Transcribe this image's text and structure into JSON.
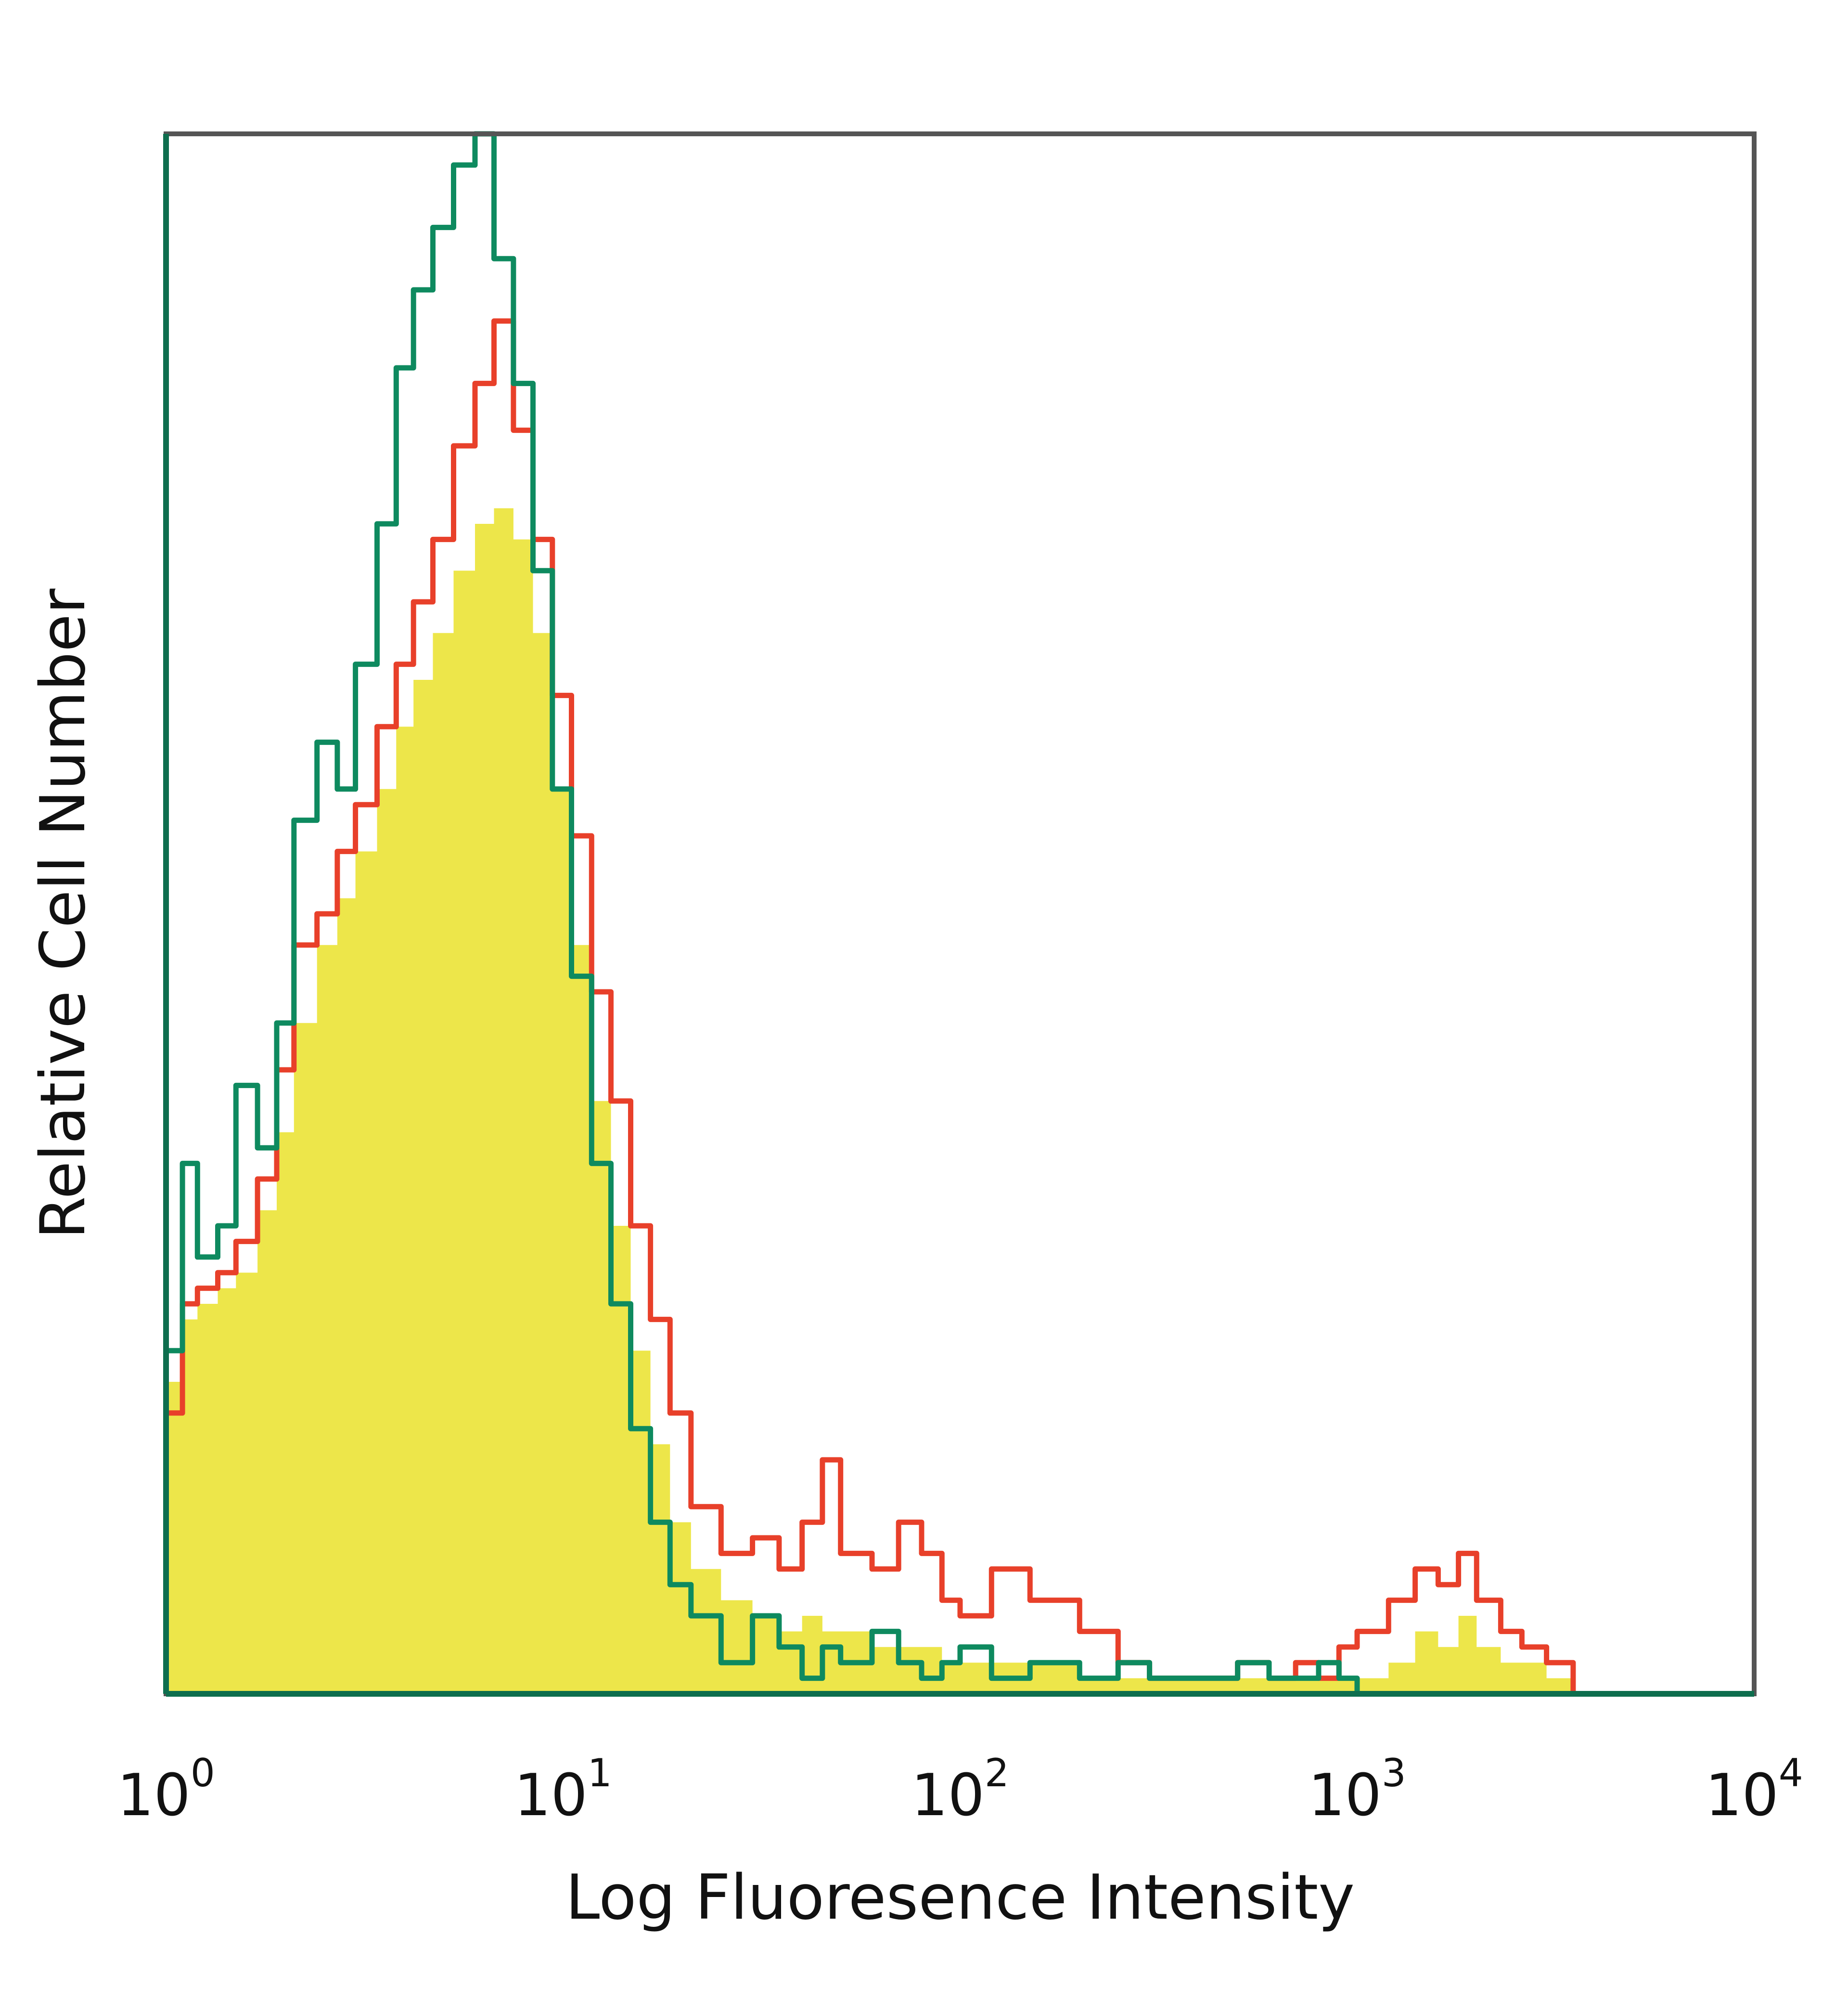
{
  "colors": {
    "filled_histogram": "#ede64a",
    "red_histogram": "#e8402a",
    "green_histogram": "#0e8a5f",
    "frame": "#555555",
    "background": "#ffffff"
  },
  "chart_data": {
    "type": "area",
    "title": "",
    "xlabel": "Log Fluoresence Intensity",
    "ylabel": "Relative Cell Number",
    "xscale": "log",
    "xlim": [
      1,
      10000
    ],
    "ylim": [
      0,
      100
    ],
    "grid": false,
    "x_ticks": [
      {
        "base": "10",
        "exp": "0",
        "value": 1
      },
      {
        "base": "10",
        "exp": "1",
        "value": 10
      },
      {
        "base": "10",
        "exp": "2",
        "value": 100
      },
      {
        "base": "10",
        "exp": "3",
        "value": 1000
      },
      {
        "base": "10",
        "exp": "4",
        "value": 10000
      }
    ],
    "series": [
      {
        "style": "filled",
        "x": [
          1,
          1.1,
          1.2,
          1.35,
          1.5,
          1.7,
          1.9,
          2.1,
          2.4,
          2.7,
          3.0,
          3.4,
          3.8,
          4.2,
          4.7,
          5.3,
          6.0,
          6.7,
          7.5,
          8.4,
          9.4,
          10.5,
          11.8,
          13.2,
          14.8,
          16.6,
          18.6,
          21,
          25,
          30,
          35,
          40,
          45,
          50,
          60,
          70,
          80,
          90,
          100,
          120,
          150,
          200,
          250,
          300,
          400,
          500,
          600,
          700,
          800,
          900,
          1000,
          1200,
          1400,
          1600,
          1800,
          2000,
          2300,
          2600,
          3000,
          3500
        ],
        "y": [
          20,
          24,
          25,
          26,
          27,
          31,
          36,
          43,
          48,
          51,
          54,
          58,
          62,
          65,
          68,
          72,
          75,
          76,
          74,
          68,
          58,
          48,
          38,
          30,
          22,
          16,
          11,
          8,
          6,
          5,
          4,
          5,
          4,
          4,
          3,
          3,
          3,
          2,
          2,
          2,
          2,
          1,
          1,
          1,
          1,
          1,
          1,
          1,
          1,
          1,
          1,
          2,
          4,
          3,
          5,
          3,
          2,
          2,
          1,
          0
        ]
      },
      {
        "style": "line-red",
        "x": [
          1,
          1.1,
          1.2,
          1.35,
          1.5,
          1.7,
          1.9,
          2.1,
          2.4,
          2.7,
          3.0,
          3.4,
          3.8,
          4.2,
          4.7,
          5.3,
          6.0,
          6.7,
          7.5,
          8.4,
          9.4,
          10.5,
          11.8,
          13.2,
          14.8,
          16.6,
          18.6,
          21,
          25,
          30,
          35,
          40,
          45,
          50,
          60,
          70,
          80,
          90,
          100,
          120,
          150,
          200,
          250,
          300,
          400,
          500,
          600,
          700,
          800,
          900,
          1000,
          1200,
          1400,
          1600,
          1800,
          2000,
          2300,
          2600,
          3000,
          3500
        ],
        "y": [
          18,
          25,
          26,
          27,
          29,
          33,
          40,
          48,
          50,
          54,
          57,
          62,
          66,
          70,
          74,
          80,
          84,
          88,
          81,
          74,
          64,
          55,
          45,
          38,
          30,
          24,
          18,
          12,
          9,
          10,
          8,
          11,
          15,
          9,
          8,
          11,
          9,
          6,
          5,
          8,
          6,
          4,
          2,
          1,
          1,
          2,
          1,
          2,
          1,
          3,
          4,
          6,
          8,
          7,
          9,
          6,
          4,
          3,
          2,
          0
        ]
      },
      {
        "style": "line-green",
        "x": [
          1,
          1.1,
          1.2,
          1.35,
          1.5,
          1.7,
          1.9,
          2.1,
          2.4,
          2.7,
          3.0,
          3.4,
          3.8,
          4.2,
          4.7,
          5.3,
          6.0,
          6.7,
          7.5,
          8.4,
          9.4,
          10.5,
          11.8,
          13.2,
          14.8,
          16.6,
          18.6,
          21,
          25,
          30,
          35,
          40,
          45,
          50,
          60,
          70,
          80,
          90,
          100,
          120,
          150,
          200,
          250,
          300,
          400,
          500,
          600,
          700,
          800,
          900,
          1000,
          1200,
          1400,
          1600,
          1800,
          2000,
          2300,
          2600,
          3000,
          3500
        ],
        "y": [
          22,
          34,
          28,
          30,
          39,
          35,
          43,
          56,
          61,
          58,
          66,
          75,
          85,
          90,
          94,
          98,
          100,
          92,
          84,
          72,
          58,
          46,
          34,
          25,
          17,
          11,
          7,
          5,
          2,
          5,
          3,
          1,
          3,
          2,
          4,
          2,
          1,
          2,
          3,
          1,
          2,
          1,
          2,
          1,
          1,
          2,
          1,
          1,
          2,
          1,
          0,
          0,
          0,
          0,
          0,
          0,
          0,
          0,
          0,
          0
        ]
      }
    ]
  }
}
